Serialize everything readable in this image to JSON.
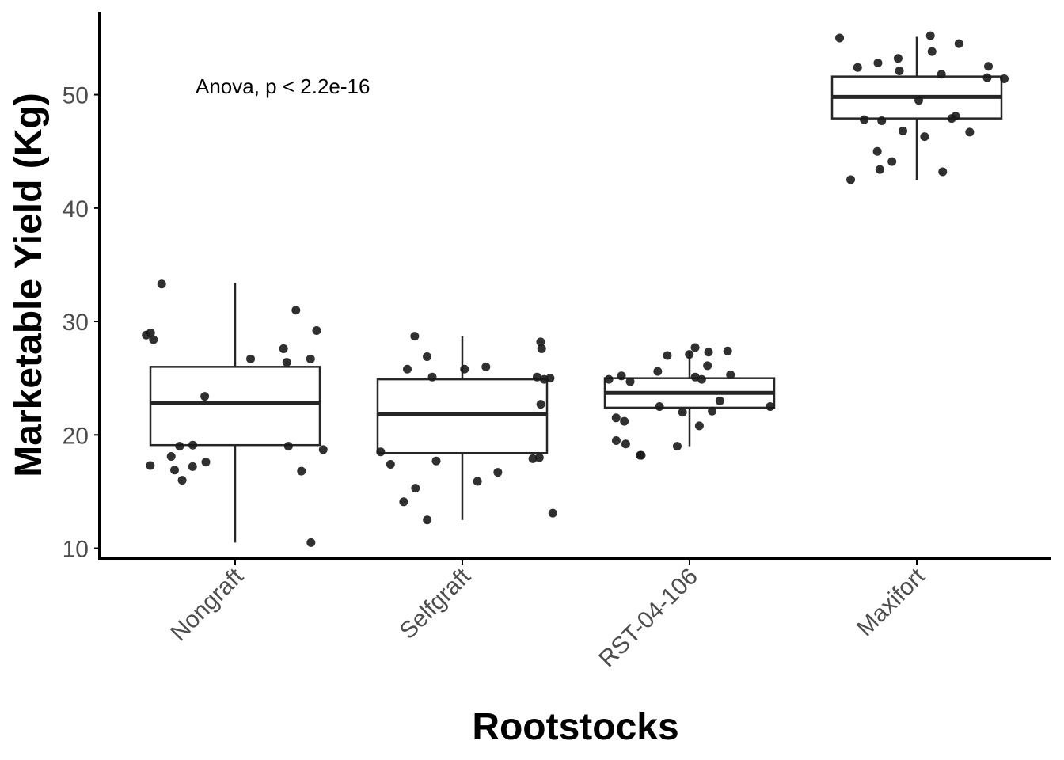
{
  "chart_data": {
    "type": "box",
    "title": "",
    "xlabel": "Rootstocks",
    "ylabel": "Marketable Yield (Kg)",
    "ylim": [
      9.2,
      57.3
    ],
    "yticks": [
      10,
      20,
      30,
      40,
      50
    ],
    "ytick_labels": [
      "10",
      "20",
      "30",
      "40",
      "50"
    ],
    "grid": false,
    "legend": "none",
    "annotation": "Anova, p < 2.2e-16",
    "categories": [
      "Nongraft",
      "Selfgraft",
      "RST-04-106",
      "Maxifort"
    ],
    "boxes": [
      {
        "category": "Nongraft",
        "whisker_low": 10.5,
        "q1": 19.1,
        "median": 22.8,
        "q3": 26.0,
        "whisker_high": 33.4
      },
      {
        "category": "Selfgraft",
        "whisker_low": 12.5,
        "q1": 18.4,
        "median": 21.8,
        "q3": 24.9,
        "whisker_high": 28.7
      },
      {
        "category": "RST-04-106",
        "whisker_low": 19.0,
        "q1": 22.4,
        "median": 23.7,
        "q3": 25.0,
        "whisker_high": 27.3
      },
      {
        "category": "Maxifort",
        "whisker_low": 42.5,
        "q1": 47.9,
        "median": 49.8,
        "q3": 51.6,
        "whisker_high": 55.1
      }
    ],
    "points": [
      {
        "category": "Nongraft",
        "values": [
          33.3,
          31.0,
          29.2,
          29.0,
          28.8,
          28.4,
          27.6,
          26.7,
          26.7,
          26.4,
          23.4,
          19.0,
          19.1,
          19.0,
          18.7,
          18.1,
          17.6,
          17.3,
          17.2,
          16.9,
          16.8,
          16.0,
          10.5
        ]
      },
      {
        "category": "Selfgraft",
        "values": [
          28.7,
          28.2,
          27.6,
          26.9,
          26.0,
          25.8,
          25.8,
          25.1,
          25.1,
          25.0,
          24.9,
          22.7,
          18.5,
          18.0,
          17.9,
          17.7,
          17.4,
          16.7,
          15.9,
          15.3,
          14.1,
          13.1,
          12.5
        ]
      },
      {
        "category": "RST-04-106",
        "values": [
          27.7,
          27.4,
          27.3,
          27.1,
          27.0,
          26.1,
          25.6,
          25.3,
          25.2,
          25.1,
          24.9,
          24.9,
          24.7,
          23.0,
          22.5,
          22.5,
          22.1,
          22.0,
          21.5,
          21.2,
          20.8,
          19.5,
          19.2,
          19.0,
          18.2,
          18.2
        ]
      },
      {
        "category": "Maxifort",
        "values": [
          55.2,
          55.0,
          54.5,
          53.8,
          53.2,
          52.8,
          52.5,
          52.4,
          52.1,
          51.8,
          51.5,
          51.4,
          49.5,
          48.1,
          47.9,
          47.8,
          47.7,
          46.8,
          46.7,
          46.3,
          45.0,
          44.1,
          43.4,
          43.2,
          42.5
        ]
      }
    ],
    "colors": {
      "point": "#1a1a1a",
      "box_stroke": "#262626",
      "box_fill": "#ffffff",
      "axis": "#000000",
      "tick_label": "#4d4d4d"
    }
  }
}
